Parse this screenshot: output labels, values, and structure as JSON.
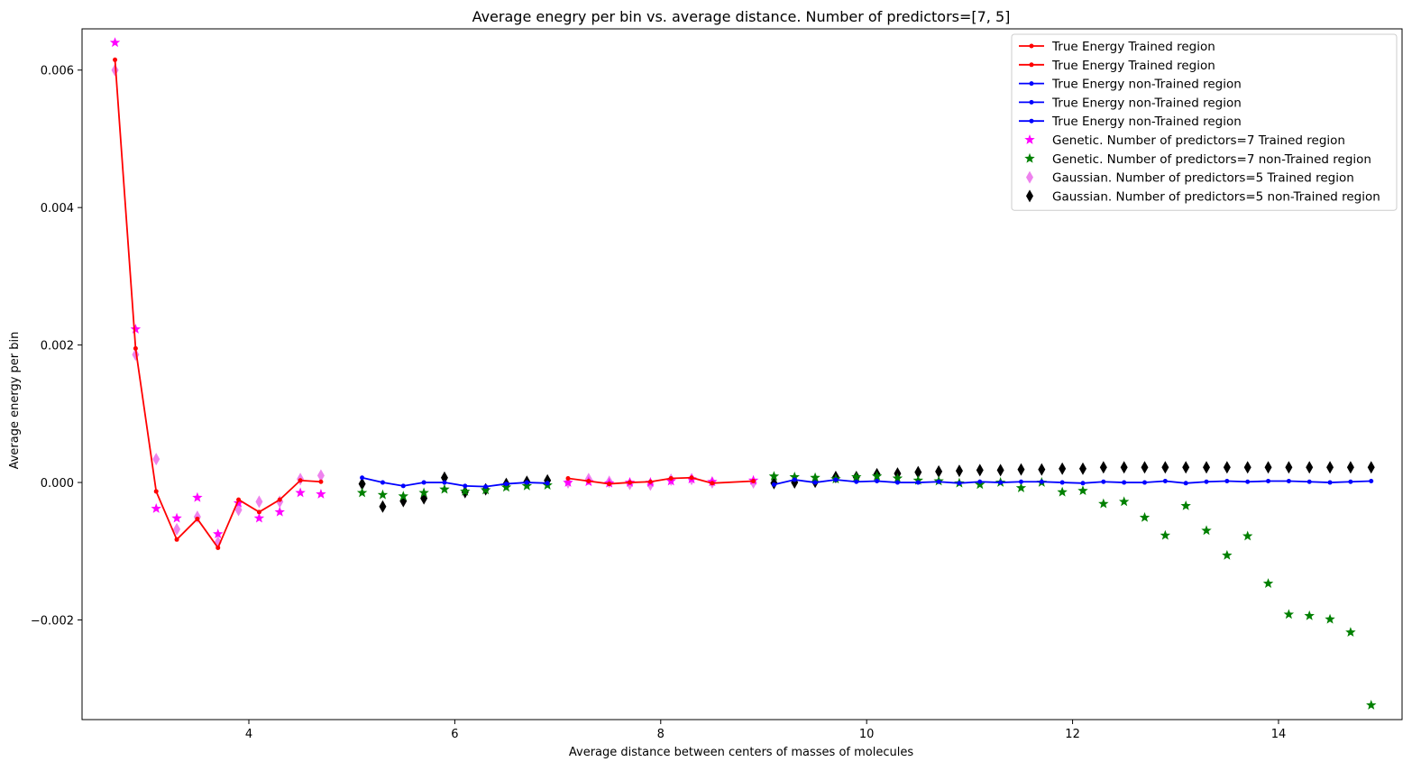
{
  "chart_data": {
    "type": "scatter",
    "title": "Average enegry per bin vs. average distance. Number of predictors=[7, 5]",
    "xlabel": "Average distance between centers of masses of molecules",
    "ylabel": "Average energy per bin",
    "xlim": [
      2.38,
      15.2
    ],
    "ylim": [
      -0.00345,
      0.0066
    ],
    "x_ticks": [
      4,
      6,
      8,
      10,
      12,
      14
    ],
    "x_tick_labels": [
      "4",
      "6",
      "8",
      "10",
      "12",
      "14"
    ],
    "y_ticks": [
      -0.002,
      0.0,
      0.002,
      0.004,
      0.006
    ],
    "y_tick_labels": [
      "−0.002",
      "0.000",
      "0.002",
      "0.004",
      "0.006"
    ],
    "grid": false,
    "legend_position": "top-right",
    "series": [
      {
        "name": "True Energy Trained region",
        "kind": "line",
        "color": "#ff0000",
        "x": [
          2.7,
          2.9,
          3.1,
          3.3,
          3.5,
          3.7,
          3.9,
          4.1,
          4.3,
          4.5,
          4.7
        ],
        "y": [
          0.00615,
          0.00195,
          -0.00013,
          -0.00083,
          -0.00053,
          -0.00095,
          -0.00025,
          -0.00043,
          -0.00025,
          3e-05,
          1e-05
        ]
      },
      {
        "name": "True Energy Trained region",
        "kind": "line",
        "color": "#ff0000",
        "x": [
          7.1,
          7.3,
          7.5,
          7.7,
          7.9,
          8.1,
          8.3,
          8.5,
          8.9
        ],
        "y": [
          6e-05,
          2e-05,
          -2e-05,
          0.0,
          1e-05,
          6e-05,
          7e-05,
          -1e-05,
          2e-05
        ]
      },
      {
        "name": "True Energy non-Trained region",
        "kind": "line",
        "color": "#0000ff",
        "x": [
          5.1,
          5.3,
          5.5,
          5.7,
          5.9,
          6.1,
          6.3,
          6.5,
          6.7,
          6.9
        ],
        "y": [
          7e-05,
          0.0,
          -5e-05,
          0.0,
          0.0,
          -5e-05,
          -6e-05,
          -2e-05,
          0.0,
          -1e-05
        ]
      },
      {
        "name": "True Energy non-Trained region",
        "kind": "line",
        "color": "#0000ff",
        "x": [
          9.1,
          9.3,
          9.5,
          9.7,
          9.9,
          10.1,
          10.3,
          10.5,
          10.7,
          10.9,
          11.1,
          11.3,
          11.5,
          11.7,
          11.9,
          12.1,
          12.3,
          12.5,
          12.7,
          12.9,
          13.1,
          13.3,
          13.5,
          13.7,
          13.9,
          14.1,
          14.3,
          14.5,
          14.7,
          14.9
        ],
        "y": [
          -3e-05,
          4e-05,
          0.0,
          4e-05,
          1e-05,
          2e-05,
          0.0,
          0.0,
          1e-05,
          -1e-05,
          1e-05,
          0.0,
          1e-05,
          1e-05,
          0.0,
          -1e-05,
          1e-05,
          0.0,
          0.0,
          2e-05,
          -1e-05,
          1e-05,
          2e-05,
          1e-05,
          2e-05,
          2e-05,
          1e-05,
          0.0,
          1e-05,
          2e-05
        ]
      },
      {
        "name": "True Energy non-Trained region",
        "kind": "line",
        "color": "#0000ff",
        "x": [],
        "y": []
      },
      {
        "name": "Genetic. Number of predictors=7 Trained region",
        "kind": "star",
        "color": "#ff00ff",
        "x": [
          2.7,
          2.9,
          3.1,
          3.3,
          3.5,
          3.7,
          3.9,
          4.1,
          4.3,
          4.5,
          4.7,
          7.1,
          7.3,
          7.5,
          7.7,
          7.9,
          8.1,
          8.3,
          8.5,
          8.9
        ],
        "y": [
          0.0064,
          0.00223,
          -0.00038,
          -0.00052,
          -0.00022,
          -0.00075,
          -0.0003,
          -0.00052,
          -0.00043,
          -0.00015,
          -0.00017,
          0.0,
          1e-05,
          -1e-05,
          0.0,
          0.0,
          2e-05,
          5e-05,
          1e-05,
          3e-05
        ]
      },
      {
        "name": "Genetic. Number of predictors=7 non-Trained region",
        "kind": "star",
        "color": "#008000",
        "x": [
          5.1,
          5.3,
          5.5,
          5.7,
          5.9,
          6.1,
          6.3,
          6.5,
          6.7,
          6.9,
          9.1,
          9.3,
          9.5,
          9.7,
          9.9,
          10.1,
          10.3,
          10.5,
          10.7,
          10.9,
          11.1,
          11.3,
          11.5,
          11.7,
          11.9,
          12.1,
          12.3,
          12.5,
          12.7,
          12.9,
          13.1,
          13.3,
          13.5,
          13.7,
          13.9,
          14.1,
          14.3,
          14.5,
          14.7,
          14.9
        ],
        "y": [
          -0.00015,
          -0.00018,
          -0.0002,
          -0.00015,
          -0.0001,
          -0.00013,
          -0.00011,
          -7e-05,
          -5e-05,
          -4e-05,
          9e-05,
          8e-05,
          7e-05,
          5e-05,
          8e-05,
          9e-05,
          6e-05,
          3e-05,
          2e-05,
          -1e-05,
          -3e-05,
          0.0,
          -8e-05,
          0.0,
          -0.00014,
          -0.00012,
          -0.00031,
          -0.00028,
          -0.00051,
          -0.00077,
          -0.00034,
          -0.0007,
          -0.00106,
          -0.00078,
          -0.00147,
          -0.00192,
          -0.00194,
          -0.00199,
          -0.00218,
          -0.00324
        ]
      },
      {
        "name": "Gaussian. Number of predictors=5 Trained region",
        "kind": "diamond",
        "color": "#ee82ee",
        "x": [
          2.7,
          2.9,
          3.1,
          3.3,
          3.5,
          3.7,
          3.9,
          4.1,
          4.3,
          4.5,
          4.7,
          7.1,
          7.3,
          7.5,
          7.7,
          7.9,
          8.1,
          8.3,
          8.5,
          8.9
        ],
        "y": [
          0.006,
          0.00186,
          0.00034,
          -0.00068,
          -0.0005,
          -0.00087,
          -0.0004,
          -0.00028,
          -0.00028,
          5e-05,
          0.0001,
          0.0,
          5e-05,
          1e-05,
          -2e-05,
          -3e-05,
          4e-05,
          5e-05,
          0.0,
          0.0
        ]
      },
      {
        "name": "Gaussian. Number of predictors=5 non-Trained region",
        "kind": "diamond",
        "color": "#000000",
        "x": [
          5.1,
          5.3,
          5.5,
          5.7,
          5.9,
          6.1,
          6.3,
          6.5,
          6.7,
          6.9,
          9.1,
          9.3,
          9.5,
          9.7,
          9.9,
          10.1,
          10.3,
          10.5,
          10.7,
          10.9,
          11.1,
          11.3,
          11.5,
          11.7,
          11.9,
          12.1,
          12.3,
          12.5,
          12.7,
          12.9,
          13.1,
          13.3,
          13.5,
          13.7,
          13.9,
          14.1,
          14.3,
          14.5,
          14.7,
          14.9
        ],
        "y": [
          -2e-05,
          -0.00035,
          -0.00027,
          -0.00023,
          7e-05,
          -0.00014,
          -0.0001,
          -2e-05,
          1e-05,
          3e-05,
          -1e-05,
          0.0,
          1e-05,
          8e-05,
          8e-05,
          0.00012,
          0.00013,
          0.00015,
          0.00016,
          0.00017,
          0.00018,
          0.00018,
          0.00019,
          0.00019,
          0.0002,
          0.0002,
          0.00022,
          0.00022,
          0.00022,
          0.00022,
          0.00022,
          0.00022,
          0.00022,
          0.00022,
          0.00022,
          0.00022,
          0.00022,
          0.00022,
          0.00022,
          0.00022
        ]
      }
    ]
  }
}
